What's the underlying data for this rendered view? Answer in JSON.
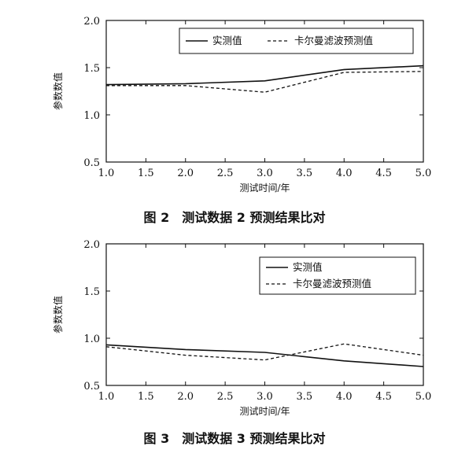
{
  "chart_data": [
    {
      "type": "line",
      "caption": "图 2　测试数据 2 预测结果比对",
      "xlabel": "测试时间/年",
      "ylabel": "参数数值",
      "xlim": [
        1.0,
        5.0
      ],
      "ylim": [
        0.5,
        2.0
      ],
      "xticks": [
        "1.0",
        "1.5",
        "2.0",
        "2.5",
        "3.0",
        "3.5",
        "4.0",
        "4.5",
        "5.0"
      ],
      "yticks": [
        "0.5",
        "1.0",
        "1.5",
        "2.0"
      ],
      "legend_position": "top-right",
      "x": [
        1.0,
        2.0,
        3.0,
        4.0,
        5.0
      ],
      "series": [
        {
          "name": "实测值",
          "style": "solid",
          "values": [
            1.32,
            1.33,
            1.36,
            1.48,
            1.52
          ]
        },
        {
          "name": "卡尔曼滤波预测值",
          "style": "dashed",
          "values": [
            1.31,
            1.31,
            1.24,
            1.45,
            1.46
          ]
        }
      ]
    },
    {
      "type": "line",
      "caption": "图 3　测试数据 3 预测结果比对",
      "xlabel": "测试时间/年",
      "ylabel": "参数数值",
      "xlim": [
        1.0,
        5.0
      ],
      "ylim": [
        0.5,
        2.0
      ],
      "xticks": [
        "1.0",
        "1.5",
        "2.0",
        "2.5",
        "3.0",
        "3.5",
        "4.0",
        "4.5",
        "5.0"
      ],
      "yticks": [
        "0.5",
        "1.0",
        "1.5",
        "2.0"
      ],
      "legend_position": "top-right",
      "x": [
        1.0,
        2.0,
        3.0,
        4.0,
        5.0
      ],
      "series": [
        {
          "name": "实测值",
          "style": "solid",
          "values": [
            0.93,
            0.88,
            0.85,
            0.76,
            0.7
          ]
        },
        {
          "name": "卡尔曼滤波预测值",
          "style": "dashed",
          "values": [
            0.91,
            0.82,
            0.77,
            0.94,
            0.82
          ]
        }
      ]
    }
  ]
}
